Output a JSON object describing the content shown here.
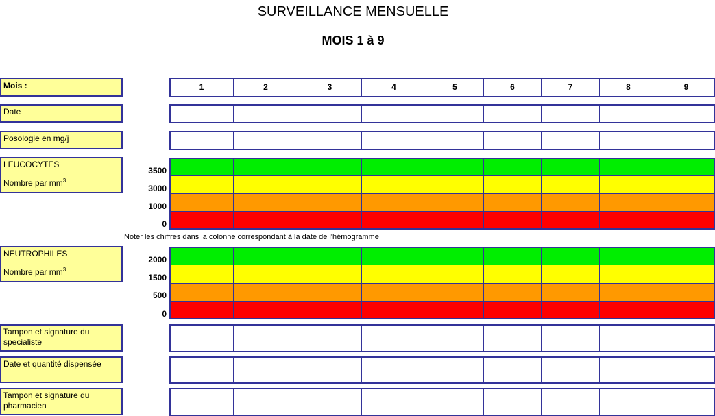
{
  "header": {
    "title": "SURVEILLANCE MENSUELLE",
    "subtitle": "MOIS 1 à 9"
  },
  "months": [
    1,
    2,
    3,
    4,
    5,
    6,
    7,
    8,
    9
  ],
  "rows": [
    {
      "label": "Mois :"
    },
    {
      "label": "Date"
    },
    {
      "label": "Posologie en mg/j"
    },
    {
      "label": "LEUCOCYTES",
      "unit": "Nombre par mm",
      "unit_sup": "3",
      "levels": [
        3500,
        3000,
        1000,
        0
      ]
    },
    {
      "label": "NEUTROPHILES",
      "unit": "Nombre par mm",
      "unit_sup": "3",
      "levels": [
        2000,
        1500,
        500,
        0
      ]
    },
    {
      "label": "Tampon et signature du specialiste"
    },
    {
      "label": "Date et quantité dispensée"
    },
    {
      "label": "Tampon et signature du pharmacien"
    }
  ],
  "note": "Noter les chiffres dans la colonne correspondant à la date de l'hémogramme"
}
